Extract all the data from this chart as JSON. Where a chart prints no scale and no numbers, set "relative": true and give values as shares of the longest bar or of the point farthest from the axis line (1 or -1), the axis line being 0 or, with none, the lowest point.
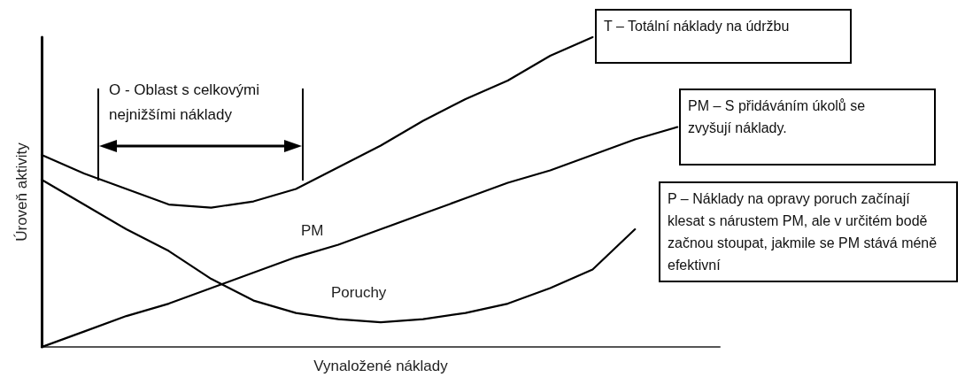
{
  "chart_data": {
    "type": "line",
    "relative": true,
    "marker": "none",
    "line_style": "solid",
    "xlabel": "Vynaložené náklady",
    "ylabel": "Úroveň aktivity",
    "categories": [
      null,
      null,
      null,
      null,
      null,
      null,
      null,
      null,
      null,
      null,
      null,
      null,
      null,
      null,
      null,
      null,
      null
    ],
    "series": [
      {
        "color": "#000000",
        "values": [
          0.62,
          0.56,
          0.51,
          0.46,
          0.45,
          0.47,
          0.51,
          0.58,
          0.65,
          0.73,
          0.8,
          0.86,
          0.94,
          1.0,
          null,
          null,
          null
        ]
      },
      {
        "name": "PM",
        "color": "#000000",
        "values": [
          0,
          0.05,
          0.1,
          0.14,
          0.19,
          0.24,
          0.29,
          0.33,
          0.38,
          0.43,
          0.48,
          0.53,
          0.57,
          0.62,
          0.67,
          0.71,
          null
        ]
      },
      {
        "name": "Poruchy",
        "color": "#000000",
        "values": [
          0.54,
          0.46,
          0.38,
          0.31,
          0.22,
          0.15,
          0.11,
          0.09,
          0.08,
          0.09,
          0.11,
          0.14,
          0.19,
          0.25,
          0.38,
          null,
          null
        ]
      }
    ],
    "annotations": [
      "T – Totální náklady na údržbu",
      "PM – S přidáváním úkolů se zvyšují náklady.",
      "P – Náklady na opravy poruch začínají klesat s nárustem PM, ale v určitém bodě začnou stoupat, jakmile se PM stává méně efektivní",
      "O - Oblast s celkovými nejnižšími náklady"
    ]
  }
}
